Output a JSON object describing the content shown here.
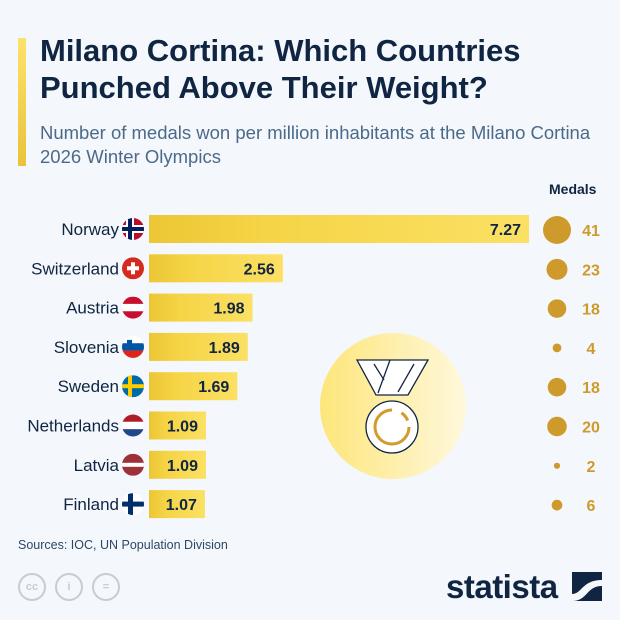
{
  "title": "Milano Cortina: Which Countries Punched Above Their Weight?",
  "subtitle": "Number of medals won per million inhabitants at the Milano Cortina 2026 Winter Olympics",
  "source": "Sources: IOC, UN Population Division",
  "brand": "statista",
  "icons": [
    "cc-icon",
    "person-icon",
    "equals-icon",
    "medal-icon"
  ],
  "colors": {
    "bar": "#f5d445",
    "bubble": "#cf9a2c",
    "text": "#0f2542",
    "background": "#f4f7fb"
  },
  "chart_data": {
    "type": "bar",
    "orientation": "horizontal",
    "categories": [
      "Norway",
      "Switzerland",
      "Austria",
      "Slovenia",
      "Sweden",
      "Netherlands",
      "Latvia",
      "Finland"
    ],
    "values": [
      7.27,
      2.56,
      1.98,
      1.89,
      1.69,
      1.09,
      1.09,
      1.07
    ],
    "medals_label": "Medals",
    "medals": [
      41,
      23,
      18,
      4,
      18,
      20,
      2,
      6
    ],
    "xlim": [
      0,
      7.27
    ]
  }
}
